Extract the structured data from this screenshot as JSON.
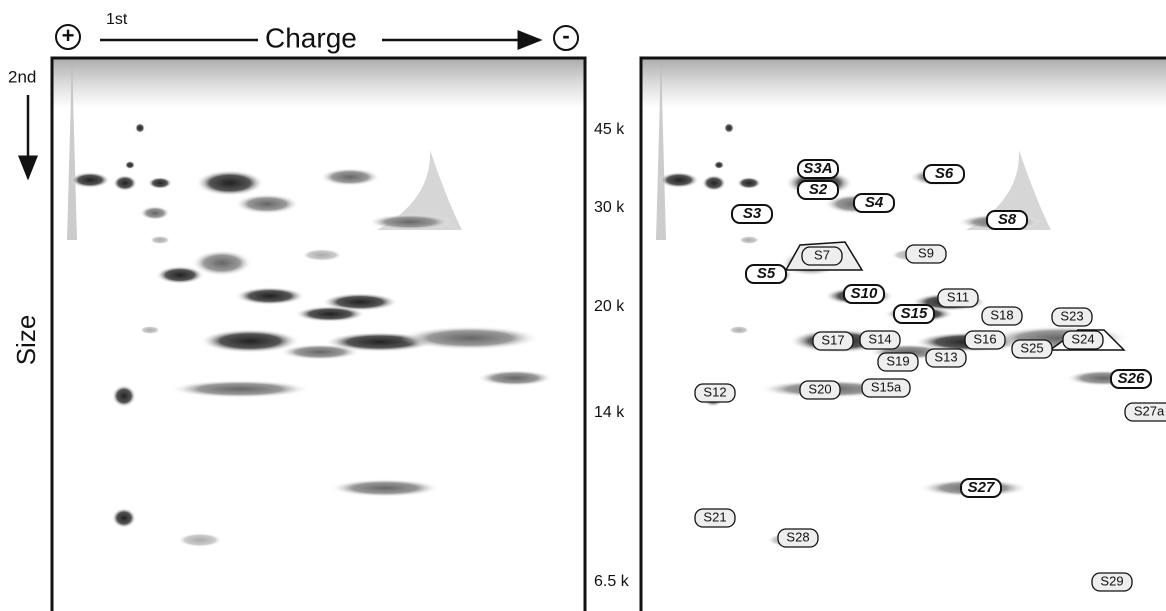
{
  "header": {
    "plus": "+",
    "first": "1st",
    "charge": "Charge",
    "minus": "-",
    "second": "2nd",
    "size": "Size"
  },
  "markers": [
    "45 k",
    "30 k",
    "20 k",
    "14 k",
    "6.5 k"
  ],
  "labels_bold": [
    "S3A",
    "S6",
    "S2",
    "S4",
    "S3",
    "S8",
    "S5",
    "S10",
    "S15",
    "S26",
    "S27"
  ],
  "labels_plain": [
    "S7",
    "S9",
    "S11",
    "S18",
    "S23",
    "S17",
    "S14",
    "S16",
    "S24",
    "S25",
    "S19",
    "S13",
    "S12",
    "S20",
    "S15a",
    "S27a",
    "S21",
    "S28",
    "S29"
  ]
}
